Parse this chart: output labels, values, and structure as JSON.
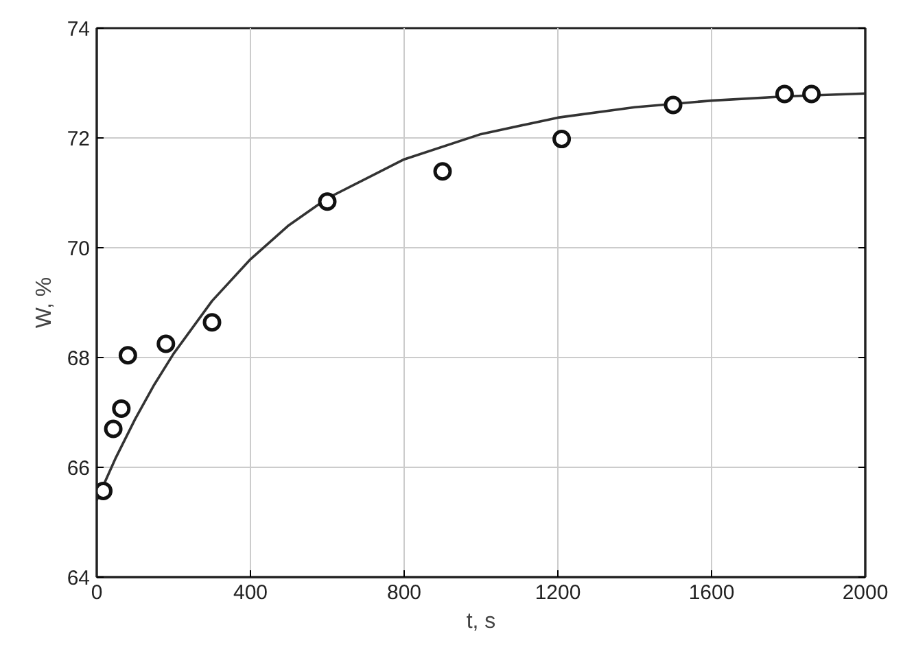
{
  "chart_data": {
    "type": "scatter",
    "xlabel": "t, s",
    "ylabel": "W, %",
    "xlim": [
      0,
      2000
    ],
    "ylim": [
      64,
      74
    ],
    "xticks": [
      0,
      400,
      800,
      1200,
      1600,
      2000
    ],
    "yticks": [
      64,
      66,
      68,
      70,
      72,
      74
    ],
    "grid": true,
    "series": [
      {
        "marker": "circle",
        "color": "#111111",
        "x": [
          17,
          43,
          64,
          81,
          180,
          300,
          600,
          900,
          1210,
          1500,
          1790,
          1860
        ],
        "values": [
          65.57,
          66.7,
          67.07,
          68.04,
          68.25,
          68.64,
          70.84,
          71.39,
          71.98,
          72.6,
          72.8,
          72.8
        ]
      },
      {
        "type": "line",
        "color": "#333333",
        "line_style": "solid",
        "x": [
          0,
          50,
          100,
          150,
          200,
          300,
          400,
          500,
          600,
          800,
          1000,
          1200,
          1400,
          1600,
          1800,
          2000
        ],
        "values": [
          65.4,
          66.18,
          66.88,
          67.51,
          68.07,
          69.03,
          69.79,
          70.41,
          70.9,
          71.61,
          72.07,
          72.37,
          72.56,
          72.68,
          72.76,
          72.81
        ]
      }
    ]
  }
}
